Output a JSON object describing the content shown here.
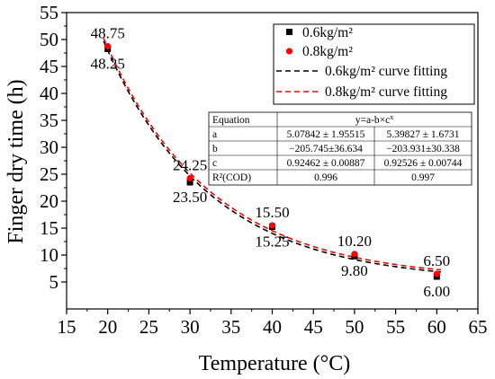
{
  "chart_data": {
    "type": "scatter",
    "xlabel": "Temperature (°C)",
    "ylabel": "Finger dry time (h)",
    "xlim": [
      15,
      65
    ],
    "ylim": [
      0,
      55
    ],
    "x_ticks": [
      "15",
      "20",
      "25",
      "30",
      "35",
      "40",
      "45",
      "50",
      "55",
      "60",
      "65"
    ],
    "y_ticks": [
      "5",
      "10",
      "15",
      "20",
      "25",
      "30",
      "35",
      "40",
      "45",
      "50",
      "55"
    ],
    "series": [
      {
        "name": "0.6kg/m²",
        "marker": "square",
        "color": "#000000",
        "x": [
          20,
          30,
          40,
          50,
          60
        ],
        "y": [
          48.25,
          23.5,
          15.25,
          9.8,
          6.0
        ],
        "labels": [
          "48.25",
          "23.50",
          "15.25",
          "9.80",
          "6.00"
        ]
      },
      {
        "name": "0.8kg/m²",
        "marker": "circle",
        "color": "#ff0000",
        "x": [
          20,
          30,
          40,
          50,
          60
        ],
        "y": [
          48.75,
          24.25,
          15.5,
          10.2,
          6.5
        ],
        "labels": [
          "48.75",
          "24.25",
          "15.50",
          "10.20",
          "6.50"
        ]
      }
    ],
    "fits": [
      {
        "name": "0.6kg/m² curve fitting",
        "color": "#000000",
        "a": 5.07842,
        "b": -205.745,
        "c": 0.92462
      },
      {
        "name": "0.8kg/m² curve fitting",
        "color": "#ff0000",
        "a": 5.39827,
        "b": -203.931,
        "c": 0.92526
      }
    ],
    "legend_position": "top-right",
    "table": {
      "header": [
        "Equation",
        "y=a-b×c",
        "x"
      ],
      "rows": [
        [
          "a",
          "5.07842 ± 1.95515",
          "5.39827 ± 1.6731"
        ],
        [
          "b",
          "−205.745±36.634",
          "−203.931±30.338"
        ],
        [
          "c",
          "0.92462 ± 0.00887",
          "0.92526 ± 0.00744"
        ],
        [
          "R²(COD)",
          "0.996",
          "0.997"
        ]
      ]
    }
  }
}
